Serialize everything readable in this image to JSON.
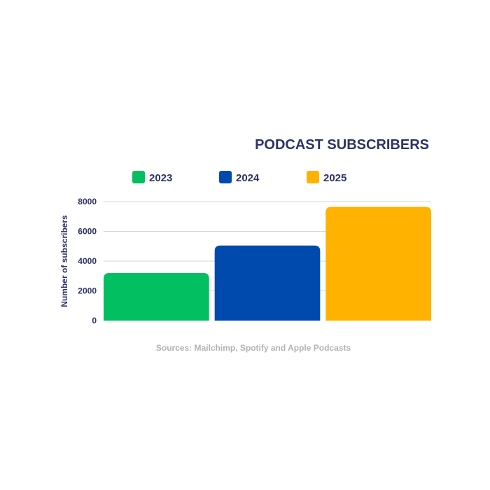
{
  "chart_data": {
    "type": "bar",
    "title": "PODCAST SUBSCRIBERS",
    "categories": [
      "2023",
      "2024",
      "2025"
    ],
    "values": [
      3200,
      5050,
      7650
    ],
    "colors": [
      "#02bf62",
      "#004aad",
      "#ffb300"
    ],
    "legend": [
      "2023",
      "2024",
      "2025"
    ],
    "legend_position": "top",
    "ylabel": "Number of subscribers",
    "xlabel": "",
    "ylim": [
      0,
      8000
    ],
    "yticks": [
      "0",
      "2000",
      "4000",
      "6000",
      "8000"
    ],
    "grid": true
  },
  "source_note": "Sources: Mailchimp, Spotify and Apple Podcasts"
}
